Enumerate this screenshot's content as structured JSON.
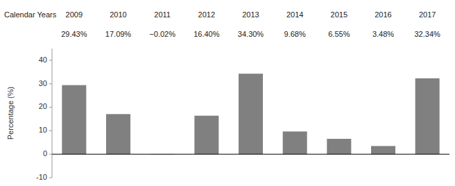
{
  "chart_data": {
    "type": "bar",
    "xlabel": "Calendar Years",
    "ylabel": "Percentage (%)",
    "categories": [
      "2009",
      "2010",
      "2011",
      "2012",
      "2013",
      "2014",
      "2015",
      "2016",
      "2017"
    ],
    "values": [
      29.43,
      17.09,
      -0.02,
      16.4,
      34.3,
      9.68,
      6.55,
      3.48,
      32.34
    ],
    "value_labels": [
      "29.43%",
      "17.09%",
      "−0.02%",
      "16.40%",
      "34.30%",
      "9.68%",
      "6.55%",
      "3.48%",
      "32.34%"
    ],
    "data_labels": true,
    "color": "#808080",
    "ylim": [
      -10,
      45
    ],
    "yticks": [
      -10,
      0,
      10,
      20,
      30,
      40
    ],
    "grid": false
  }
}
